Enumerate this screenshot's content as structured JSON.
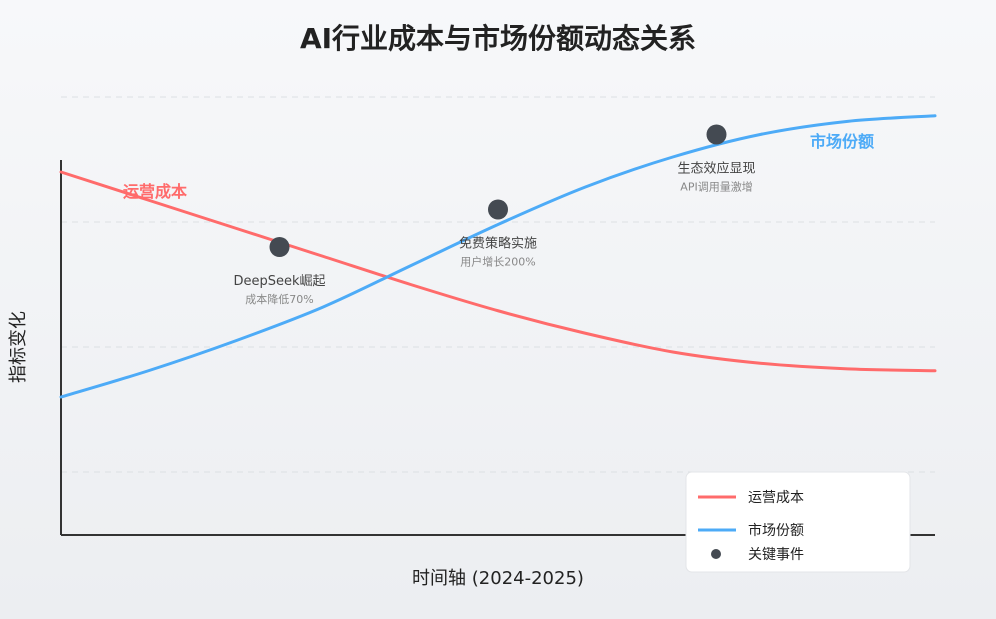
{
  "chart_data": {
    "type": "line",
    "title": "AI行业成本与市场份额动态关系",
    "xlabel": "时间轴 (2024-2025)",
    "ylabel": "指标变化",
    "xlim": [
      0,
      100
    ],
    "ylim": [
      0,
      100
    ],
    "grid": "horizontal-dashed",
    "legend_position": "bottom-right",
    "series": [
      {
        "name": "运营成本",
        "color": "#ff6b6b",
        "x": [
          0,
          10,
          20,
          30,
          40,
          50,
          60,
          70,
          80,
          90,
          100
        ],
        "values": [
          80,
          72.5,
          65,
          57.5,
          50,
          43,
          37,
          32,
          29,
          27.5,
          27
        ]
      },
      {
        "name": "市场份额",
        "color": "#4dabf7",
        "x": [
          0,
          10,
          20,
          30,
          40,
          50,
          60,
          70,
          80,
          90,
          100
        ],
        "values": [
          20,
          27,
          35,
          44,
          55,
          66,
          76,
          84,
          90,
          93.5,
          95
        ]
      }
    ],
    "events": [
      {
        "name": "DeepSeek崛起",
        "detail": "成本降低70%",
        "x": 25,
        "y": 60
      },
      {
        "name": "免费策略实施",
        "detail": "用户增长200%",
        "x": 50,
        "y": 70
      },
      {
        "name": "生态效应显现",
        "detail": "API调用量激增",
        "x": 75,
        "y": 90
      }
    ],
    "event_color": "#444a52",
    "legend": [
      "运营成本",
      "市场份额",
      "关键事件"
    ]
  }
}
